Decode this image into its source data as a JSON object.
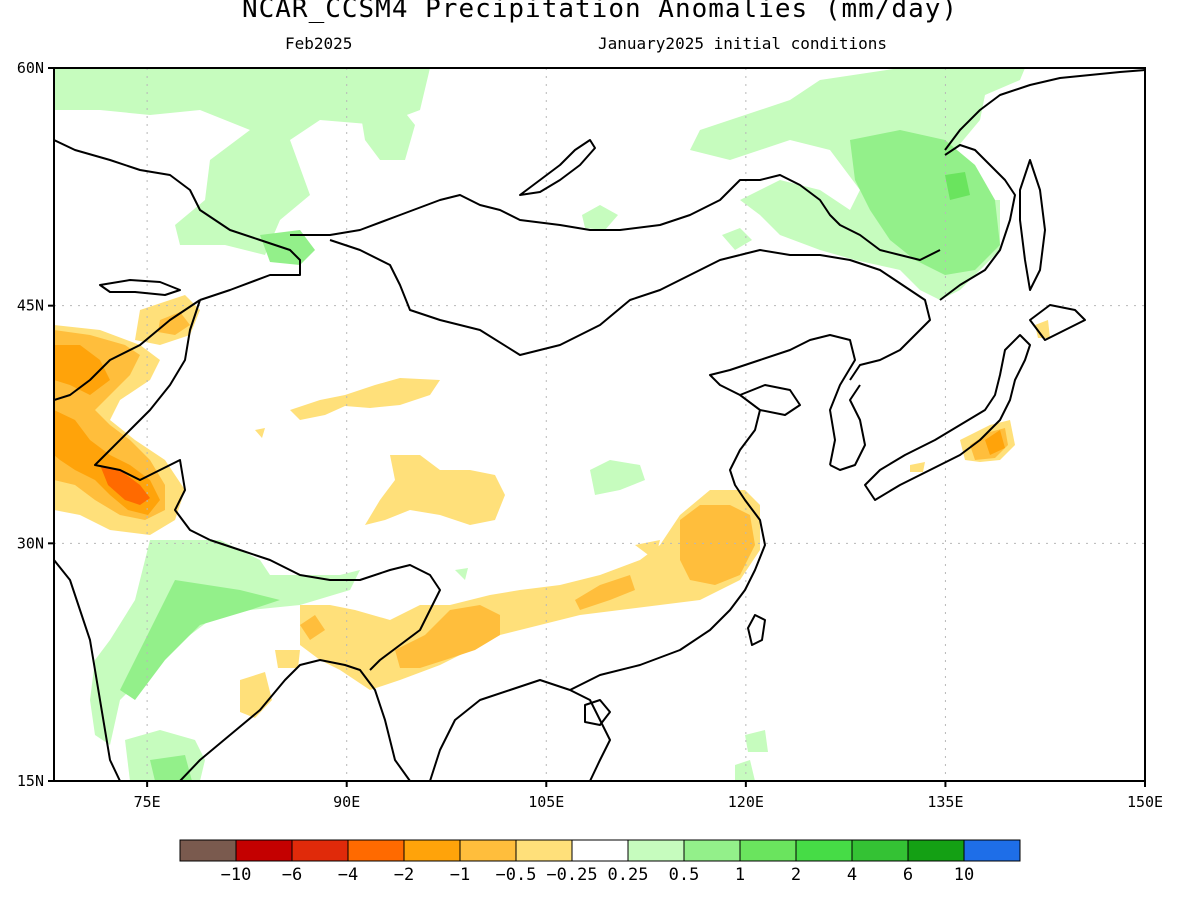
{
  "figure": {
    "title": "NCAR_CCSM4 Precipitation Anomalies (mm/day)",
    "valid_month": "Feb2025",
    "init_text": "January2025 initial conditions"
  },
  "axes": {
    "lon_min": 68,
    "lon_max": 150,
    "lat_min": 15,
    "lat_max": 60,
    "x_ticks": [
      {
        "lon": 75,
        "label": "75E"
      },
      {
        "lon": 90,
        "label": "90E"
      },
      {
        "lon": 105,
        "label": "105E"
      },
      {
        "lon": 120,
        "label": "120E"
      },
      {
        "lon": 135,
        "label": "135E"
      },
      {
        "lon": 150,
        "label": "150E"
      }
    ],
    "y_ticks": [
      {
        "lat": 60,
        "label": "60N"
      },
      {
        "lat": 45,
        "label": "45N"
      },
      {
        "lat": 30,
        "label": "30N"
      },
      {
        "lat": 15,
        "label": "15N"
      }
    ],
    "gridlines": "dotted"
  },
  "colorbar": {
    "colors": [
      "#7a5a4e",
      "#c40000",
      "#e02a0a",
      "#ff6a00",
      "#ffa30a",
      "#ffbe3c",
      "#ffe07a",
      "#ffffff",
      "#c6fcbe",
      "#93f08a",
      "#6ae45e",
      "#46dc46",
      "#34c234",
      "#14a014",
      "#1e6ee8"
    ],
    "labels": [
      "-10",
      "-6",
      "-4",
      "-2",
      "-1",
      "-0.5",
      "-0.25",
      "0.25",
      "0.5",
      "1",
      "2",
      "4",
      "6",
      "10"
    ]
  },
  "chart_data": {
    "type": "heatmap",
    "title": "NCAR_CCSM4 Precipitation Anomalies (mm/day)",
    "subtitle_left": "Feb2025",
    "subtitle_right": "January2025 initial conditions",
    "x_range": [
      68,
      150
    ],
    "y_range": [
      15,
      60
    ],
    "units": "mm/day",
    "levels": [
      -10,
      -6,
      -4,
      -2,
      -1,
      -0.5,
      -0.25,
      0.25,
      0.5,
      1,
      2,
      4,
      6,
      10
    ],
    "regions": [
      {
        "desc": "Siberia / north Mongolia wet band",
        "range": [
          0.25,
          0.5
        ]
      },
      {
        "desc": "Russian Far East wet anomaly",
        "range": [
          0.5,
          1.0
        ],
        "peak": 2
      },
      {
        "desc": "North-west India / Pakistan dry anomaly",
        "range": [
          -1,
          -2
        ],
        "peak": -4
      },
      {
        "desc": "Kazakhstan dry anomaly",
        "range": [
          -0.5,
          -1
        ]
      },
      {
        "desc": "South China dry band",
        "range": [
          -0.25,
          -1
        ]
      },
      {
        "desc": "Myanmar / Bangladesh dry anomaly",
        "range": [
          -0.25,
          -0.5
        ]
      },
      {
        "desc": "Central Japan dry anomaly",
        "range": [
          -0.5,
          -1
        ]
      },
      {
        "desc": "Western India / Arabian Sea coast wet anomaly",
        "range": [
          0.25,
          1.0
        ]
      },
      {
        "desc": "Tibetan Plateau scattered dry patches",
        "range": [
          -0.25,
          -0.5
        ]
      }
    ]
  }
}
